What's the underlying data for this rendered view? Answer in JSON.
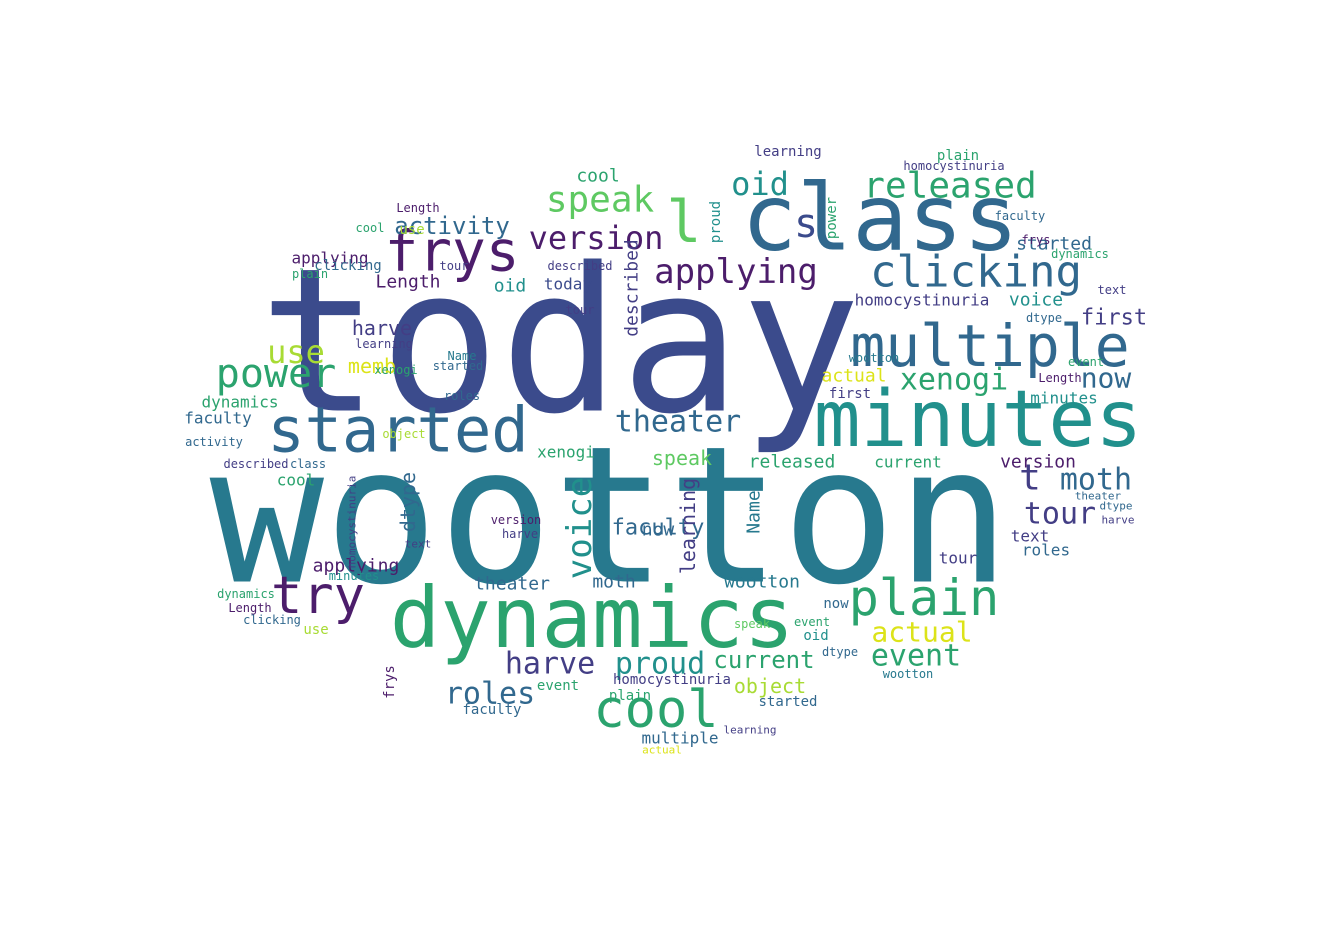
{
  "word_cloud": {
    "palette": {
      "navy": "#3b4b8c",
      "indigo": "#433e85",
      "purple": "#4c1d6b",
      "blue": "#31688e",
      "teal": "#27798e",
      "cyan": "#21908c",
      "green": "#2ba36e",
      "lime": "#5ec962",
      "yellowgreen": "#a8db34",
      "yellow": "#dce319"
    },
    "words": [
      {
        "text": "today",
        "color": "navy"
      },
      {
        "text": "wootton",
        "color": "teal"
      },
      {
        "text": "class",
        "color": "blue"
      },
      {
        "text": "dynamics",
        "color": "green"
      },
      {
        "text": "minutes",
        "color": "cyan"
      },
      {
        "text": "started",
        "color": "blue"
      },
      {
        "text": "frys",
        "color": "purple"
      },
      {
        "text": "multiple",
        "color": "blue"
      },
      {
        "text": "clicking",
        "color": "blue"
      },
      {
        "text": "released",
        "color": "green"
      },
      {
        "text": "version",
        "color": "purple"
      },
      {
        "text": "applying",
        "color": "purple"
      },
      {
        "text": "speak",
        "color": "lime"
      },
      {
        "text": "oid",
        "color": "cyan"
      },
      {
        "text": "l",
        "color": "lime"
      },
      {
        "text": "s",
        "color": "navy"
      },
      {
        "text": "power",
        "color": "green"
      },
      {
        "text": "use",
        "color": "yellowgreen"
      },
      {
        "text": "try",
        "color": "purple"
      },
      {
        "text": "plain",
        "color": "green"
      },
      {
        "text": "cool",
        "color": "green"
      },
      {
        "text": "voice",
        "color": "cyan"
      },
      {
        "text": "theater",
        "color": "blue"
      },
      {
        "text": "xenogi",
        "color": "green"
      },
      {
        "text": "now",
        "color": "blue"
      },
      {
        "text": "moth",
        "color": "blue"
      },
      {
        "text": "tour",
        "color": "indigo"
      },
      {
        "text": "event",
        "color": "green"
      },
      {
        "text": "actual",
        "color": "yellow"
      },
      {
        "text": "harve",
        "color": "indigo"
      },
      {
        "text": "proud",
        "color": "cyan"
      },
      {
        "text": "roles",
        "color": "blue"
      },
      {
        "text": "faculty",
        "color": "blue"
      },
      {
        "text": "current",
        "color": "green"
      },
      {
        "text": "activity",
        "color": "blue"
      },
      {
        "text": "homocystinuria",
        "color": "indigo"
      },
      {
        "text": "Length",
        "color": "purple"
      },
      {
        "text": "memb",
        "color": "yellow"
      },
      {
        "text": "first",
        "color": "indigo"
      },
      {
        "text": "dtype",
        "color": "blue"
      },
      {
        "text": "learning",
        "color": "indigo"
      },
      {
        "text": "described",
        "color": "indigo"
      },
      {
        "text": "text",
        "color": "indigo"
      },
      {
        "text": "Name",
        "color": "teal"
      },
      {
        "text": "object",
        "color": "yellowgreen"
      },
      {
        "text": "t",
        "color": "indigo"
      }
    ]
  }
}
